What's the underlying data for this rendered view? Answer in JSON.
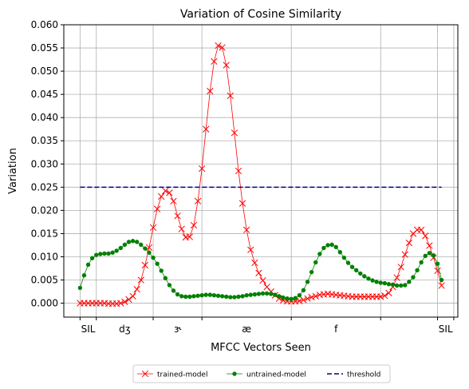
{
  "chart_data": {
    "type": "line",
    "title": "Variation of Cosine Similarity",
    "xlabel": "MFCC Vectors Seen",
    "ylabel": "Variation",
    "ylim": [
      -0.003,
      0.06
    ],
    "xlim": [
      -4,
      93
    ],
    "grid": true,
    "legend_position": "bottom, below the axes",
    "y_ticks": [
      "0.000",
      "0.005",
      "0.010",
      "0.015",
      "0.020",
      "0.025",
      "0.030",
      "0.035",
      "0.040",
      "0.045",
      "0.050",
      "0.055",
      "0.060"
    ],
    "x_ticks": [
      {
        "x": 0,
        "label": ""
      },
      {
        "x": 4,
        "label": "SIL"
      },
      {
        "x": 18,
        "label": ""
      },
      {
        "x": 30,
        "label": ""
      },
      {
        "x": 52,
        "label": ""
      },
      {
        "x": 74,
        "label": ""
      },
      {
        "x": 88,
        "label": ""
      },
      {
        "x": 92,
        "label": ""
      }
    ],
    "x_labels": [
      {
        "x": 2,
        "label": "SIL"
      },
      {
        "x": 11,
        "label": "dʒ"
      },
      {
        "x": 24,
        "label": "ɝ"
      },
      {
        "x": 41,
        "label": "æ"
      },
      {
        "x": 63,
        "label": "f"
      },
      {
        "x": 90,
        "label": "SIL"
      }
    ],
    "series": [
      {
        "name": "trained-model",
        "color": "#ff0000",
        "marker": "x",
        "x": [
          0,
          1,
          2,
          3,
          4,
          5,
          6,
          7,
          8,
          9,
          10,
          11,
          12,
          13,
          14,
          15,
          16,
          17,
          18,
          19,
          20,
          21,
          22,
          23,
          24,
          25,
          26,
          27,
          28,
          29,
          30,
          31,
          32,
          33,
          34,
          35,
          36,
          37,
          38,
          39,
          40,
          41,
          42,
          43,
          44,
          45,
          46,
          47,
          48,
          49,
          50,
          51,
          52,
          53,
          54,
          55,
          56,
          57,
          58,
          59,
          60,
          61,
          62,
          63,
          64,
          65,
          66,
          67,
          68,
          69,
          70,
          71,
          72,
          73,
          74,
          75,
          76,
          77,
          78,
          79,
          80,
          81,
          82,
          83,
          84,
          85,
          86,
          87,
          88,
          89
        ],
        "y": [
          0.0,
          0.0,
          0.0,
          0.0,
          0.0,
          0.0,
          0.0,
          -0.0001,
          -0.0001,
          -0.0001,
          0.0,
          0.0003,
          0.0008,
          0.0015,
          0.003,
          0.005,
          0.0082,
          0.012,
          0.0163,
          0.0203,
          0.023,
          0.0242,
          0.0238,
          0.022,
          0.0188,
          0.016,
          0.0142,
          0.0143,
          0.0168,
          0.022,
          0.029,
          0.0375,
          0.0457,
          0.0521,
          0.0555,
          0.0551,
          0.0513,
          0.0447,
          0.0367,
          0.0285,
          0.0215,
          0.0158,
          0.0115,
          0.0087,
          0.0065,
          0.0049,
          0.0035,
          0.0025,
          0.0017,
          0.001,
          0.0006,
          0.0004,
          0.0004,
          0.0004,
          0.0005,
          0.0007,
          0.001,
          0.0013,
          0.0015,
          0.0018,
          0.0019,
          0.002,
          0.0019,
          0.0018,
          0.0017,
          0.0016,
          0.0015,
          0.0014,
          0.0014,
          0.0014,
          0.0014,
          0.0014,
          0.0014,
          0.0014,
          0.0014,
          0.0016,
          0.0022,
          0.0035,
          0.0055,
          0.0078,
          0.0105,
          0.013,
          0.015,
          0.0158,
          0.0158,
          0.0145,
          0.0124,
          0.0098,
          0.007,
          0.0038
        ]
      },
      {
        "name": "untrained-model",
        "color": "#008000",
        "marker": "o",
        "x": [
          0,
          1,
          2,
          3,
          4,
          5,
          6,
          7,
          8,
          9,
          10,
          11,
          12,
          13,
          14,
          15,
          16,
          17,
          18,
          19,
          20,
          21,
          22,
          23,
          24,
          25,
          26,
          27,
          28,
          29,
          30,
          31,
          32,
          33,
          34,
          35,
          36,
          37,
          38,
          39,
          40,
          41,
          42,
          43,
          44,
          45,
          46,
          47,
          48,
          49,
          50,
          51,
          52,
          53,
          54,
          55,
          56,
          57,
          58,
          59,
          60,
          61,
          62,
          63,
          64,
          65,
          66,
          67,
          68,
          69,
          70,
          71,
          72,
          73,
          74,
          75,
          76,
          77,
          78,
          79,
          80,
          81,
          82,
          83,
          84,
          85,
          86,
          87,
          88,
          89
        ],
        "y": [
          0.0033,
          0.006,
          0.0083,
          0.0097,
          0.0104,
          0.0106,
          0.0107,
          0.0107,
          0.0109,
          0.0113,
          0.0119,
          0.0126,
          0.0132,
          0.0134,
          0.0132,
          0.0126,
          0.0118,
          0.0109,
          0.0098,
          0.0085,
          0.007,
          0.0054,
          0.0039,
          0.0027,
          0.0019,
          0.0015,
          0.0014,
          0.0014,
          0.0015,
          0.0016,
          0.0017,
          0.0018,
          0.0018,
          0.0017,
          0.0016,
          0.0015,
          0.0014,
          0.0013,
          0.0013,
          0.0014,
          0.0015,
          0.0017,
          0.0018,
          0.0019,
          0.002,
          0.0021,
          0.0021,
          0.002,
          0.0018,
          0.0015,
          0.0012,
          0.001,
          0.0009,
          0.0011,
          0.0017,
          0.0028,
          0.0046,
          0.0067,
          0.0088,
          0.0106,
          0.0119,
          0.0125,
          0.0126,
          0.0121,
          0.011,
          0.0098,
          0.0087,
          0.0078,
          0.0071,
          0.0064,
          0.0058,
          0.0053,
          0.0049,
          0.0046,
          0.0044,
          0.0043,
          0.0041,
          0.004,
          0.0038,
          0.0038,
          0.0039,
          0.0046,
          0.0056,
          0.0071,
          0.0088,
          0.0102,
          0.0108,
          0.0103,
          0.0085,
          0.005
        ]
      },
      {
        "name": "threshold",
        "color": "#00008b",
        "marker": "none",
        "dash": "dashed",
        "x": [
          0,
          89
        ],
        "y": [
          0.025,
          0.025
        ]
      }
    ]
  }
}
